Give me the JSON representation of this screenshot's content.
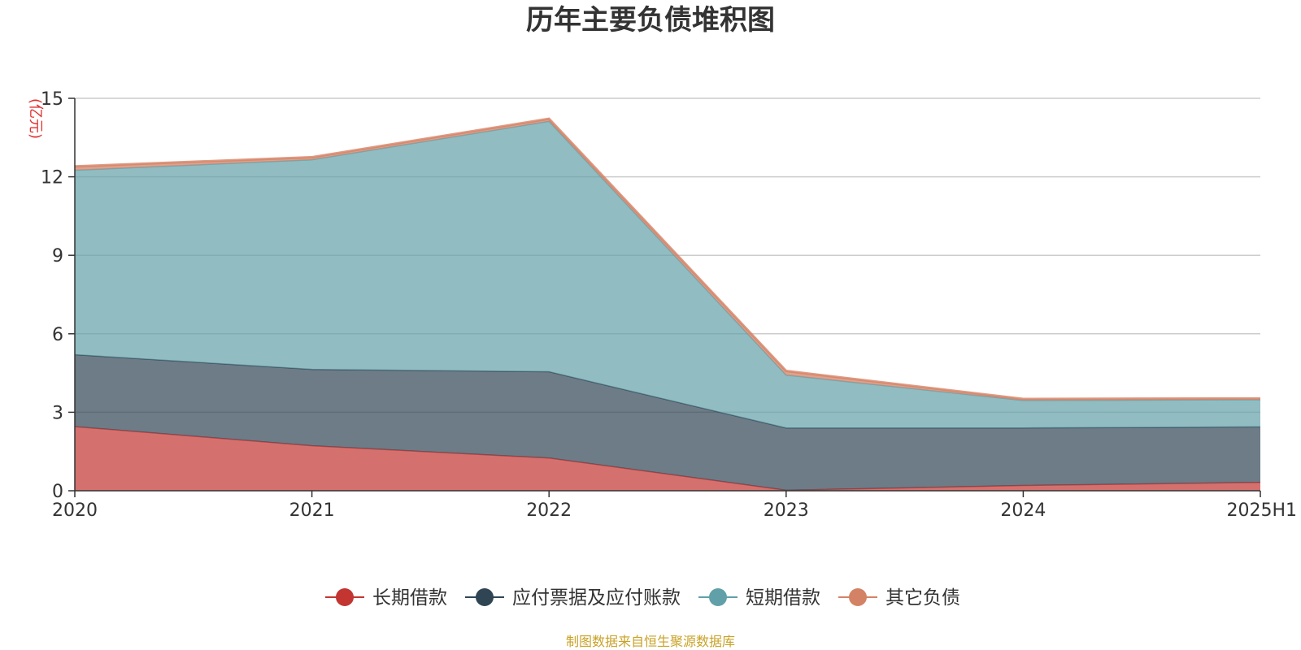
{
  "chart_data": {
    "type": "area",
    "stacked": true,
    "title": "历年主要负债堆积图",
    "ylabel": "亿元",
    "ylim": [
      0,
      15
    ],
    "yticks": [
      0,
      3,
      6,
      9,
      12,
      15
    ],
    "grid": true,
    "legend_position": "bottom",
    "categories": [
      "2020",
      "2021",
      "2022",
      "2023",
      "2024",
      "2025H1"
    ],
    "series": [
      {
        "name": "长期借款",
        "color": "#c23531",
        "values": [
          2.45,
          1.72,
          1.25,
          0.02,
          0.2,
          0.32
        ]
      },
      {
        "name": "应付票据及应付账款",
        "color": "#2f4554",
        "values": [
          2.75,
          2.92,
          3.3,
          2.38,
          2.2,
          2.12
        ]
      },
      {
        "name": "短期借款",
        "color": "#61a0a8",
        "values": [
          7.05,
          8.01,
          9.57,
          2.02,
          1.05,
          1.04
        ]
      },
      {
        "name": "其它负债",
        "color": "#d48265",
        "values": [
          0.15,
          0.1,
          0.1,
          0.16,
          0.06,
          0.05
        ]
      }
    ]
  },
  "source_note": "制图数据来自恒生聚源数据库"
}
